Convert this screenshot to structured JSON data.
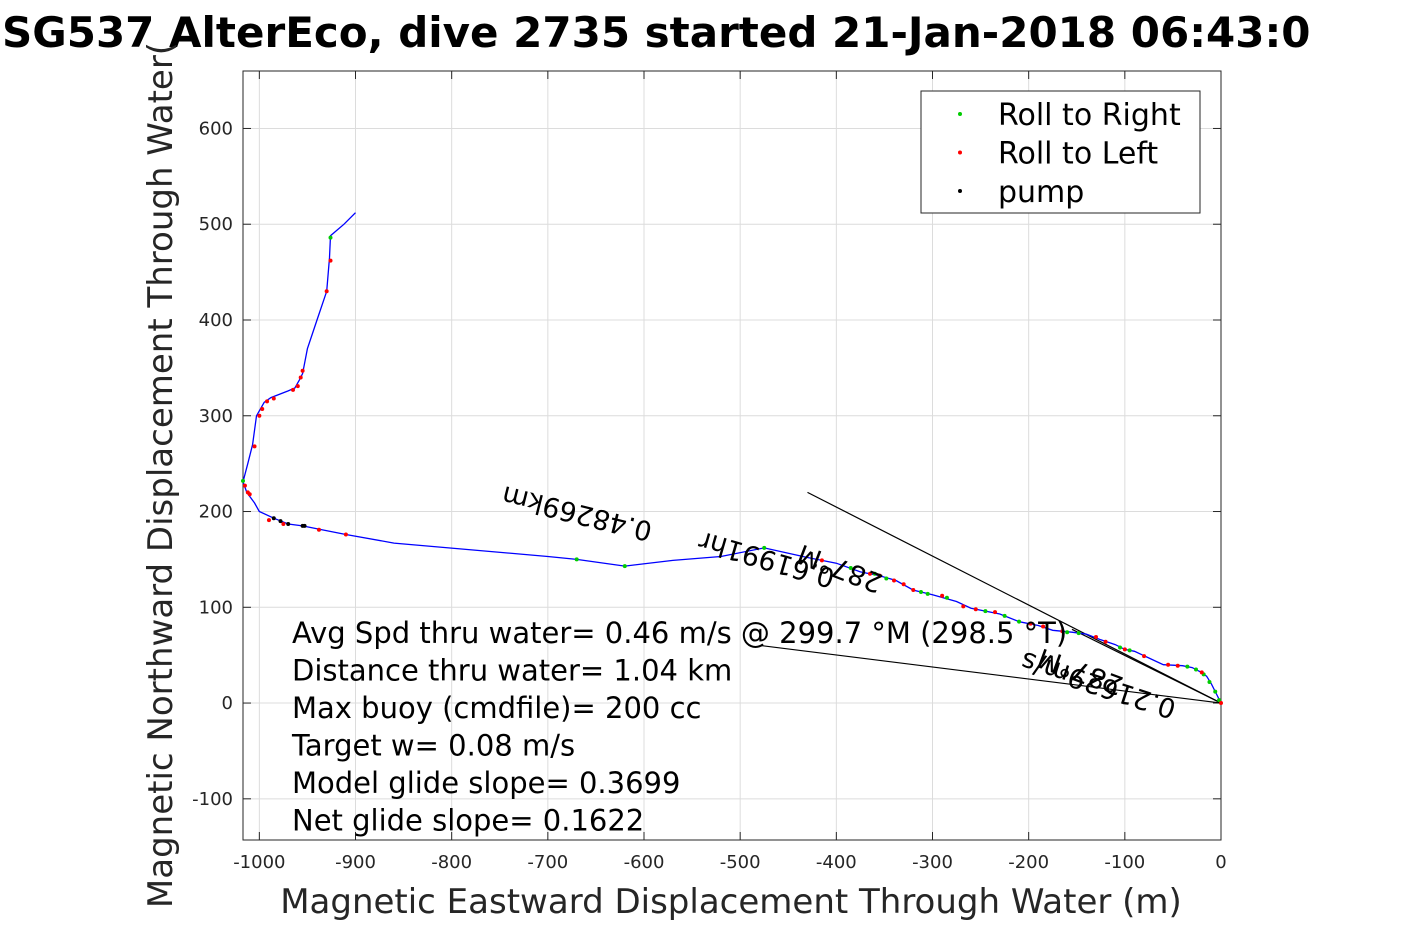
{
  "chart_data": {
    "type": "line",
    "title": "SG537 AlterEco, dive 2735 started 21-Jan-2018 06:43:0",
    "xlabel": "Magnetic Eastward Displacement Through Water (m)",
    "ylabel": "Magnetic Northward Displacement Through Water(",
    "xlim": [
      -1017,
      0
    ],
    "ylim": [
      -143,
      660
    ],
    "x_ticks": [
      -1000,
      -900,
      -800,
      -700,
      -600,
      -500,
      -400,
      -300,
      -200,
      -100,
      0
    ],
    "x_tick_labels": [
      "-1000",
      "-900",
      "-800",
      "-700",
      "-600",
      "-500",
      "-400",
      "-300",
      "-200",
      "-100",
      "0"
    ],
    "y_ticks": [
      -100,
      0,
      100,
      200,
      300,
      400,
      500,
      600
    ],
    "y_tick_labels": [
      "-100",
      "0",
      "100",
      "200",
      "300",
      "400",
      "500",
      "600"
    ],
    "grid": true,
    "legend_position": "top-right",
    "colors": {
      "track": "#0000ff",
      "roll_right": "#00cc00",
      "roll_left": "#ff0000",
      "pump": "#000000",
      "vector": "#000000",
      "grid": "#dcdcdc"
    },
    "legend": [
      {
        "key": "roll_right",
        "label": "Roll to Right"
      },
      {
        "key": "roll_left",
        "label": "Roll to Left"
      },
      {
        "key": "pump",
        "label": "pump"
      }
    ],
    "track": [
      [
        0,
        0
      ],
      [
        -5,
        10
      ],
      [
        -10,
        20
      ],
      [
        -15,
        28
      ],
      [
        -22,
        33
      ],
      [
        -30,
        37
      ],
      [
        -40,
        39
      ],
      [
        -60,
        40
      ],
      [
        -75,
        47
      ],
      [
        -90,
        54
      ],
      [
        -100,
        56
      ],
      [
        -110,
        61
      ],
      [
        -125,
        66
      ],
      [
        -140,
        72
      ],
      [
        -155,
        74
      ],
      [
        -175,
        76
      ],
      [
        -190,
        81
      ],
      [
        -210,
        85
      ],
      [
        -230,
        93
      ],
      [
        -260,
        99
      ],
      [
        -275,
        106
      ],
      [
        -300,
        113
      ],
      [
        -320,
        118
      ],
      [
        -338,
        128
      ],
      [
        -355,
        133
      ],
      [
        -375,
        137
      ],
      [
        -400,
        146
      ],
      [
        -430,
        152
      ],
      [
        -475,
        162
      ],
      [
        -520,
        153
      ],
      [
        -570,
        149
      ],
      [
        -620,
        143
      ],
      [
        -670,
        150
      ],
      [
        -700,
        153
      ],
      [
        -860,
        167
      ],
      [
        -910,
        176
      ],
      [
        -935,
        181
      ],
      [
        -955,
        185
      ],
      [
        -970,
        187
      ],
      [
        -985,
        193
      ],
      [
        -1000,
        200
      ],
      [
        -1005,
        209
      ],
      [
        -1013,
        220
      ],
      [
        -1017,
        231
      ],
      [
        -1012,
        250
      ],
      [
        -1007,
        270
      ],
      [
        -1003,
        300
      ],
      [
        -995,
        314
      ],
      [
        -988,
        319
      ],
      [
        -970,
        326
      ],
      [
        -963,
        329
      ],
      [
        -958,
        338
      ],
      [
        -955,
        344
      ],
      [
        -950,
        370
      ],
      [
        -940,
        400
      ],
      [
        -930,
        430
      ],
      [
        -927,
        465
      ],
      [
        -926,
        488
      ],
      [
        -912,
        500
      ],
      [
        -900,
        512
      ]
    ],
    "roll_right": [
      [
        -2,
        3
      ],
      [
        -6,
        12
      ],
      [
        -12,
        22
      ],
      [
        -18,
        30
      ],
      [
        -26,
        35
      ],
      [
        -35,
        38
      ],
      [
        -95,
        55
      ],
      [
        -105,
        58
      ],
      [
        -148,
        73
      ],
      [
        -160,
        74
      ],
      [
        -210,
        85
      ],
      [
        -225,
        91
      ],
      [
        -245,
        96
      ],
      [
        -285,
        110
      ],
      [
        -305,
        114
      ],
      [
        -312,
        116
      ],
      [
        -348,
        130
      ],
      [
        -360,
        135
      ],
      [
        -385,
        141
      ],
      [
        -475,
        162
      ],
      [
        -620,
        143
      ],
      [
        -670,
        150
      ],
      [
        -926,
        486
      ],
      [
        -1017,
        232
      ]
    ],
    "roll_left": [
      [
        0,
        0
      ],
      [
        -20,
        32
      ],
      [
        -45,
        39
      ],
      [
        -55,
        40
      ],
      [
        -80,
        49
      ],
      [
        -100,
        56
      ],
      [
        -120,
        64
      ],
      [
        -130,
        69
      ],
      [
        -165,
        75
      ],
      [
        -185,
        80
      ],
      [
        -198,
        83
      ],
      [
        -235,
        95
      ],
      [
        -255,
        98
      ],
      [
        -268,
        101
      ],
      [
        -290,
        112
      ],
      [
        -320,
        118
      ],
      [
        -330,
        124
      ],
      [
        -340,
        128
      ],
      [
        -355,
        133
      ],
      [
        -365,
        135
      ],
      [
        -415,
        149
      ],
      [
        -910,
        176
      ],
      [
        -938,
        181
      ],
      [
        -975,
        187
      ],
      [
        -990,
        191
      ],
      [
        -1012,
        220
      ],
      [
        -1015,
        227
      ],
      [
        -1005,
        268
      ],
      [
        -1000,
        300
      ],
      [
        -997,
        307
      ],
      [
        -992,
        315
      ],
      [
        -985,
        318
      ],
      [
        -965,
        327
      ],
      [
        -960,
        331
      ],
      [
        -957,
        340
      ],
      [
        -955,
        347
      ],
      [
        -930,
        430
      ],
      [
        -926,
        462
      ],
      [
        -1010,
        218
      ]
    ],
    "pump": [
      [
        -970,
        187
      ],
      [
        -985,
        193
      ],
      [
        -953,
        185
      ],
      [
        -955,
        185
      ],
      [
        -978,
        190
      ]
    ],
    "vectors": [
      {
        "from": [
          0,
          0
        ],
        "to": [
          -430,
          220
        ]
      },
      {
        "from": [
          0,
          0
        ],
        "to": [
          -478,
          60
        ]
      },
      {
        "from": [
          0,
          0
        ],
        "to": [
          -155,
          77
        ]
      }
    ],
    "vector_labels": [
      {
        "text": "0.48269km",
        "anchor": [
          -590,
          188
        ],
        "angle_deg": 194
      },
      {
        "text": "0.61991hr",
        "anchor": [
          -400,
          139
        ],
        "angle_deg": 196
      },
      {
        "text": "0.21629m/s",
        "anchor": [
          -45,
          2
        ],
        "angle_deg": 198
      },
      {
        "text": "287°M",
        "anchor": [
          -350,
          133
        ],
        "angle_deg": 201
      },
      {
        "text": "287°M",
        "anchor": [
          -100,
          26
        ],
        "angle_deg": 200
      }
    ],
    "annotations": [
      "Avg Spd thru water=  0.46 m/s @ 299.7 °M (298.5 °T)",
      "Distance thru water=  1.04 km",
      "Max buoy (cmdfile)= 200 cc",
      "Target w= 0.08 m/s",
      "Model glide slope= 0.3699",
      "Net glide slope= 0.1622"
    ]
  }
}
